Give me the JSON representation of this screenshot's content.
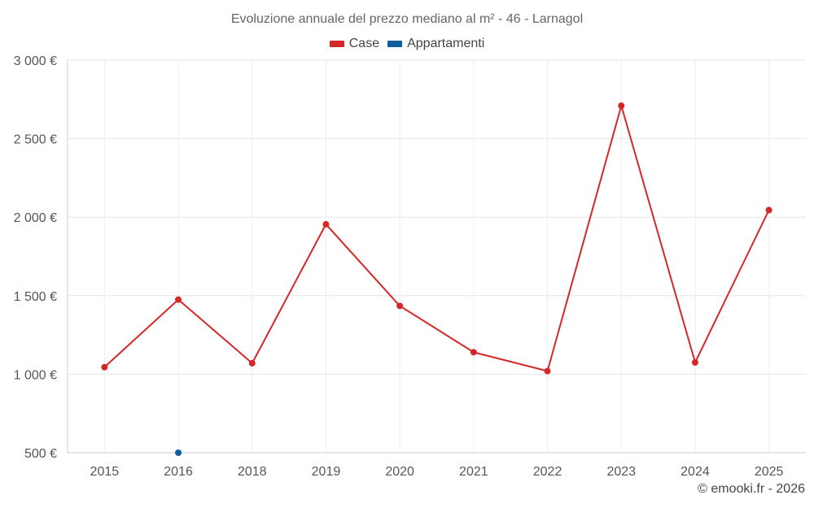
{
  "chart_data": {
    "type": "line",
    "title": "Evoluzione annuale del prezzo mediano al m² - 46 - Larnagol",
    "categories": [
      "2015",
      "2016",
      "2018",
      "2019",
      "2020",
      "2021",
      "2022",
      "2023",
      "2024",
      "2025"
    ],
    "series": [
      {
        "name": "Case",
        "color": "#d62728",
        "values": [
          1045,
          1475,
          1070,
          1955,
          1435,
          1140,
          1020,
          2710,
          1075,
          2045
        ]
      },
      {
        "name": "Appartamenti",
        "color": "#0a5e9c",
        "values": [
          null,
          500,
          null,
          null,
          null,
          null,
          null,
          null,
          null,
          null
        ]
      }
    ],
    "yticks": [
      500,
      1000,
      1500,
      2000,
      2500,
      3000
    ],
    "ytick_labels": [
      "500 €",
      "1 000 €",
      "1 500 €",
      "2 000 €",
      "2 500 €",
      "3 000 €"
    ],
    "ylim": [
      500,
      3000
    ],
    "xlabel": "",
    "ylabel": "",
    "legend_position": "top-center",
    "grid": true
  },
  "credits": "© emooki.fr - 2026"
}
